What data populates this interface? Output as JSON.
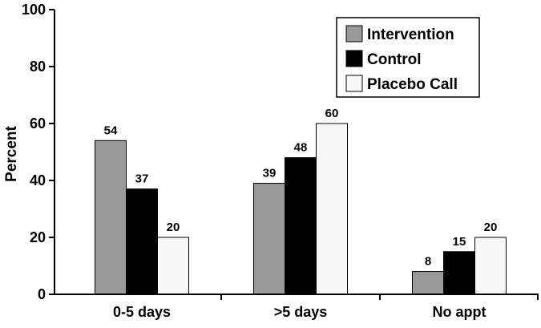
{
  "chart_data": {
    "type": "bar",
    "title": "",
    "xlabel": "",
    "ylabel": "Percent",
    "ylim": [
      0,
      100
    ],
    "yticks": [
      0,
      20,
      40,
      60,
      80,
      100
    ],
    "categories": [
      "0-5 days",
      ">5 days",
      "No appt"
    ],
    "series": [
      {
        "name": "Intervention",
        "values": [
          54,
          39,
          8
        ],
        "color": "#999999"
      },
      {
        "name": "Control",
        "values": [
          37,
          48,
          15
        ],
        "color": "#000000"
      },
      {
        "name": "Placebo Call",
        "values": [
          20,
          60,
          20
        ],
        "color": "#f7f7f7"
      }
    ],
    "data_labels": [
      [
        "54",
        "39",
        "8"
      ],
      [
        "37",
        "48",
        "15"
      ],
      [
        "20",
        "60",
        "20"
      ]
    ],
    "legend_position": "top-right",
    "grid": false
  }
}
